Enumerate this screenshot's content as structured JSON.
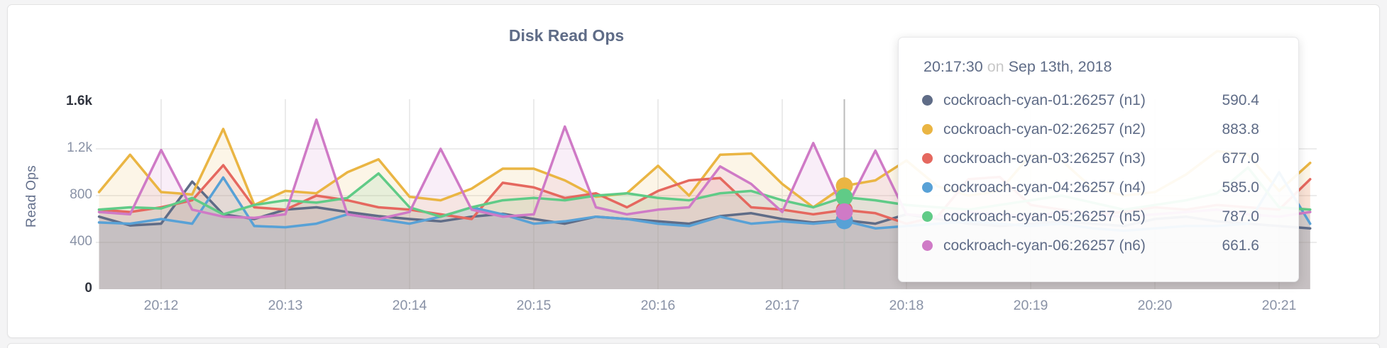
{
  "card": {
    "title": "Disk Read Ops"
  },
  "y_axis": {
    "title": "Read Ops",
    "ticks": [
      {
        "label": "1.6k",
        "value": 1600,
        "bold": true,
        "grid": false
      },
      {
        "label": "1.2k",
        "value": 1200,
        "bold": false,
        "grid": true
      },
      {
        "label": "800",
        "value": 800,
        "bold": false,
        "grid": true
      },
      {
        "label": "400",
        "value": 400,
        "bold": false,
        "grid": true
      },
      {
        "label": "0",
        "value": 0,
        "bold": true,
        "grid": false
      }
    ]
  },
  "x_axis": {
    "ticks": [
      {
        "label": "20:12",
        "index": 2
      },
      {
        "label": "20:13",
        "index": 6
      },
      {
        "label": "20:14",
        "index": 10
      },
      {
        "label": "20:15",
        "index": 14
      },
      {
        "label": "20:16",
        "index": 18
      },
      {
        "label": "20:17",
        "index": 22
      },
      {
        "label": "20:18",
        "index": 26
      },
      {
        "label": "20:19",
        "index": 30
      },
      {
        "label": "20:20",
        "index": 34
      },
      {
        "label": "20:21",
        "index": 38
      }
    ]
  },
  "chart_data": {
    "type": "area",
    "title": "Disk Read Ops",
    "xlabel": "",
    "ylabel": "Read Ops",
    "ylim": [
      0,
      1600
    ],
    "grid": true,
    "x_start": "20:11:30",
    "x_step_seconds": 15,
    "hover": {
      "time": "20:17:30",
      "index": 24
    },
    "series": [
      {
        "name": "cockroach-cyan-01:26257 (n1)",
        "color": "#5f6c87",
        "values": [
          620,
          545,
          560,
          920,
          640,
          600,
          680,
          700,
          660,
          625,
          600,
          580,
          620,
          645,
          600,
          560,
          620,
          600,
          580,
          560,
          625,
          650,
          600,
          570,
          590.4,
          560,
          640,
          600,
          560,
          540,
          560,
          580,
          560,
          540,
          600,
          620,
          580,
          560,
          540,
          520
        ]
      },
      {
        "name": "cockroach-cyan-02:26257 (n2)",
        "color": "#eab543",
        "values": [
          830,
          1150,
          830,
          810,
          1370,
          720,
          840,
          820,
          1000,
          1110,
          790,
          760,
          860,
          1030,
          1030,
          930,
          790,
          820,
          1055,
          800,
          1150,
          1160,
          900,
          700,
          883.8,
          930,
          1100,
          880,
          800,
          840,
          1150,
          1100,
          860,
          800,
          830,
          980,
          1180,
          1150,
          840,
          1080
        ]
      },
      {
        "name": "cockroach-cyan-03:26257 (n3)",
        "color": "#e5685f",
        "values": [
          680,
          660,
          700,
          760,
          1060,
          700,
          680,
          800,
          760,
          700,
          680,
          640,
          600,
          910,
          870,
          780,
          820,
          700,
          840,
          930,
          950,
          700,
          680,
          640,
          677,
          650,
          560,
          620,
          940,
          960,
          720,
          680,
          640,
          660,
          700,
          680,
          720,
          700,
          680,
          940
        ]
      },
      {
        "name": "cockroach-cyan-04:26257 (n4)",
        "color": "#58a1d6",
        "values": [
          570,
          560,
          600,
          560,
          955,
          540,
          530,
          560,
          640,
          600,
          560,
          620,
          700,
          640,
          560,
          580,
          620,
          600,
          560,
          540,
          620,
          560,
          580,
          560,
          585,
          520,
          540,
          560,
          580,
          560,
          540,
          560,
          520,
          500,
          520,
          540,
          540,
          560,
          1000,
          560
        ]
      },
      {
        "name": "cockroach-cyan-05:26257 (n5)",
        "color": "#60cb87",
        "values": [
          680,
          700,
          690,
          780,
          640,
          720,
          760,
          740,
          780,
          990,
          700,
          620,
          700,
          760,
          780,
          760,
          800,
          820,
          780,
          760,
          820,
          840,
          760,
          700,
          787,
          760,
          720,
          700,
          680,
          720,
          760,
          800,
          740,
          680,
          720,
          760,
          820,
          1040,
          700,
          680
        ]
      },
      {
        "name": "cockroach-cyan-06:26257 (n6)",
        "color": "#cf7ac6",
        "values": [
          660,
          640,
          1190,
          680,
          620,
          610,
          640,
          1450,
          640,
          600,
          660,
          1200,
          680,
          620,
          640,
          1390,
          700,
          640,
          680,
          700,
          1050,
          900,
          660,
          1250,
          661.6,
          1185,
          640,
          620,
          660,
          640,
          620,
          660,
          640,
          620,
          640,
          660,
          680,
          640,
          620,
          660
        ]
      }
    ]
  },
  "tooltip": {
    "time": "20:17:30",
    "conjunction": "on",
    "date": "Sep 13th, 2018",
    "rows": [
      {
        "label": "cockroach-cyan-01:26257 (n1)",
        "value": "590.4",
        "color": "#5f6c87"
      },
      {
        "label": "cockroach-cyan-02:26257 (n2)",
        "value": "883.8",
        "color": "#eab543"
      },
      {
        "label": "cockroach-cyan-03:26257 (n3)",
        "value": "677.0",
        "color": "#e5685f"
      },
      {
        "label": "cockroach-cyan-04:26257 (n4)",
        "value": "585.0",
        "color": "#58a1d6"
      },
      {
        "label": "cockroach-cyan-05:26257 (n5)",
        "value": "787.0",
        "color": "#60cb87"
      },
      {
        "label": "cockroach-cyan-06:26257 (n6)",
        "value": "661.6",
        "color": "#cf7ac6"
      }
    ]
  }
}
